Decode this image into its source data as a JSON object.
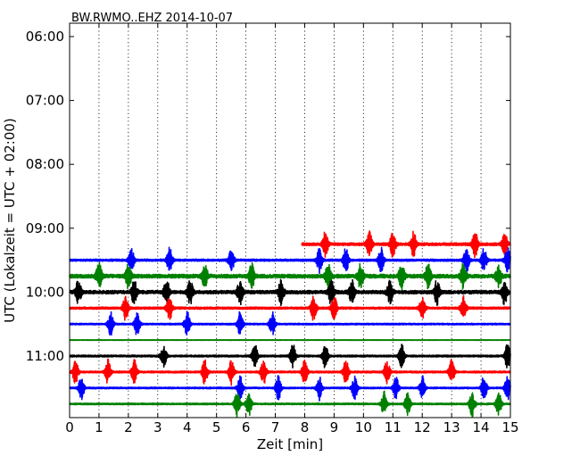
{
  "chart_data": {
    "type": "line",
    "title": "BW.RWMO..EHZ 2014-10-07",
    "xlabel": "Zeit  [min]",
    "ylabel": "UTC (Lokalzeit = UTC + 02:00)",
    "xlim": [
      0,
      15
    ],
    "x_ticks": [
      0,
      1,
      2,
      3,
      4,
      5,
      6,
      7,
      8,
      9,
      10,
      11,
      12,
      13,
      14,
      15
    ],
    "x_tick_labels": [
      "0",
      "1",
      "2",
      "3",
      "4",
      "5",
      "6",
      "7",
      "8",
      "9",
      "10",
      "11",
      "12",
      "13",
      "14",
      "15"
    ],
    "y_ticks": [
      "06:00",
      "07:00",
      "08:00",
      "09:00",
      "10:00",
      "11:00"
    ],
    "grid": "vertical dotted",
    "colors": [
      "#ff0000",
      "#0000ff",
      "#008000",
      "#000000"
    ],
    "series": [
      {
        "start": "09:15",
        "color": "#ff0000",
        "x_range": [
          7.9,
          15
        ],
        "amplitude": 0.45,
        "bursts": [
          8.7,
          10.2,
          11.0,
          11.7,
          13.8,
          14.8
        ]
      },
      {
        "start": "09:30",
        "color": "#0000ff",
        "x_range": [
          0,
          15
        ],
        "amplitude": 0.35,
        "bursts": [
          2.1,
          3.4,
          5.5,
          8.5,
          9.4,
          10.6,
          13.5,
          14.1,
          14.9
        ]
      },
      {
        "start": "09:45",
        "color": "#008000",
        "x_range": [
          0,
          15
        ],
        "amplitude": 0.6,
        "bursts": [
          1.0,
          2.0,
          4.6,
          6.2,
          8.8,
          9.9,
          11.3,
          12.2,
          13.4,
          14.6
        ]
      },
      {
        "start": "10:00",
        "color": "#000000",
        "x_range": [
          0,
          15
        ],
        "amplitude": 0.55,
        "bursts": [
          0.3,
          2.2,
          3.3,
          4.1,
          5.8,
          7.2,
          8.9,
          9.6,
          10.9,
          12.5,
          14.8
        ]
      },
      {
        "start": "10:15",
        "color": "#ff0000",
        "x_range": [
          0,
          15
        ],
        "amplitude": 0.35,
        "bursts": [
          1.9,
          3.4,
          8.3,
          9.0,
          12.0,
          13.4
        ]
      },
      {
        "start": "10:30",
        "color": "#0000ff",
        "x_range": [
          0,
          15
        ],
        "amplitude": 0.25,
        "bursts": [
          1.4,
          2.3,
          4.0,
          5.8,
          6.9
        ]
      },
      {
        "start": "10:45",
        "color": "#008000",
        "x_range": [
          0,
          15
        ],
        "amplitude": 0.08,
        "bursts": []
      },
      {
        "start": "11:00",
        "color": "#000000",
        "x_range": [
          0,
          15
        ],
        "amplitude": 0.3,
        "bursts": [
          3.2,
          6.3,
          7.6,
          8.7,
          11.3,
          14.9
        ]
      },
      {
        "start": "11:15",
        "color": "#ff0000",
        "x_range": [
          0,
          15
        ],
        "amplitude": 0.3,
        "bursts": [
          0.2,
          1.3,
          2.2,
          4.6,
          5.5,
          6.6,
          8.0,
          9.4,
          10.8,
          13.0
        ]
      },
      {
        "start": "11:30",
        "color": "#0000ff",
        "x_range": [
          0,
          15
        ],
        "amplitude": 0.25,
        "bursts": [
          0.4,
          5.8,
          7.1,
          8.5,
          9.7,
          11.1,
          12.0,
          14.1,
          14.9
        ]
      },
      {
        "start": "11:45",
        "color": "#008000",
        "x_range": [
          0,
          15
        ],
        "amplitude": 0.25,
        "bursts": [
          5.7,
          6.1,
          10.7,
          11.5,
          13.7,
          14.6
        ]
      }
    ]
  }
}
